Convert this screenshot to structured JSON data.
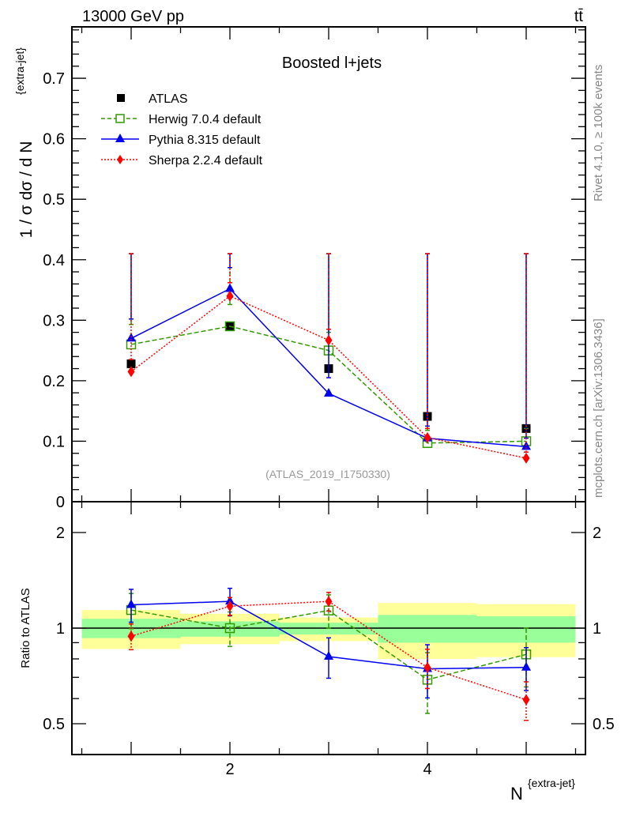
{
  "header": {
    "energy_label": "13000 GeV pp",
    "process_label": "tt̄",
    "side_label_rivet": "Rivet 4.1.0, ≥ 100k events",
    "side_label_mcplots": "mcplots.cern.ch [arXiv:1306.3436]"
  },
  "colors": {
    "atlas": "#000000",
    "herwig": "#339900",
    "pythia": "#0000ee",
    "sherpa": "#ff0000",
    "band_total": "#ffff99",
    "band_stat": "#99ff99"
  },
  "chart_data": [
    {
      "type": "line",
      "title": "Boosted l+jets",
      "analysis_label": "(ATLAS_2019_I1750330)",
      "xlabel_base": "N",
      "xlabel_sup": "{extra-jet}",
      "ylabel": "1 / σ dσ / d N",
      "ylabel_sup": "{extra-jet}",
      "xlim": [
        0.4,
        5.6
      ],
      "ylim": [
        0,
        0.785
      ],
      "x_tick_labels": [
        "2",
        "4"
      ],
      "y_tick_labels": [
        "0",
        "0.1",
        "0.2",
        "0.3",
        "0.4",
        "0.5",
        "0.6",
        "0.7"
      ],
      "legend_position": "top-left",
      "x": [
        1,
        2,
        3,
        4,
        5
      ],
      "series": [
        {
          "key": "atlas",
          "name": "ATLAS",
          "marker": "filled-square",
          "line": "none",
          "values": [
            0.228,
            0.29,
            0.22,
            0.141,
            0.121
          ]
        },
        {
          "key": "herwig",
          "name": "Herwig 7.0.4 default",
          "marker": "open-square",
          "line": "dashed",
          "values": [
            0.26,
            0.29,
            0.25,
            0.097,
            0.1
          ],
          "errors": [
            0.033,
            0.036,
            0.03,
            0.021,
            0.021
          ]
        },
        {
          "key": "pythia",
          "name": "Pythia 8.315 default",
          "marker": "triangle",
          "line": "solid",
          "values": [
            0.27,
            0.352,
            0.179,
            0.105,
            0.091
          ],
          "errors": [
            0.032,
            0.035,
            0.026,
            0.02,
            0.014
          ]
        },
        {
          "key": "sherpa",
          "name": "Sherpa 2.2.4 default",
          "marker": "diamond",
          "line": "dotted",
          "values": [
            0.215,
            0.34,
            0.267,
            0.106,
            0.072
          ],
          "errors": [
            0.02,
            0.022,
            0.018,
            0.015,
            0.01
          ]
        }
      ]
    },
    {
      "type": "line",
      "ylabel": "Ratio to ATLAS",
      "yscale": "log",
      "ylim": [
        0.4,
        2.5
      ],
      "y_tick_labels": [
        "0.5",
        "1",
        "2"
      ],
      "y_tick_values": [
        0.5,
        1,
        2
      ],
      "reference_line": 1,
      "bins": [
        [
          0.5,
          1.5
        ],
        [
          1.5,
          2.5
        ],
        [
          2.5,
          3.5
        ],
        [
          3.5,
          4.5
        ],
        [
          4.5,
          5.5
        ]
      ],
      "band_total": [
        [
          0.86,
          1.14
        ],
        [
          0.89,
          1.11
        ],
        [
          0.91,
          1.08
        ],
        [
          0.8,
          1.2
        ],
        [
          0.81,
          1.19
        ]
      ],
      "band_stat": [
        [
          0.93,
          1.07
        ],
        [
          0.94,
          1.05
        ],
        [
          0.955,
          1.04
        ],
        [
          0.9,
          1.1
        ],
        [
          0.9,
          1.09
        ]
      ]
    }
  ]
}
